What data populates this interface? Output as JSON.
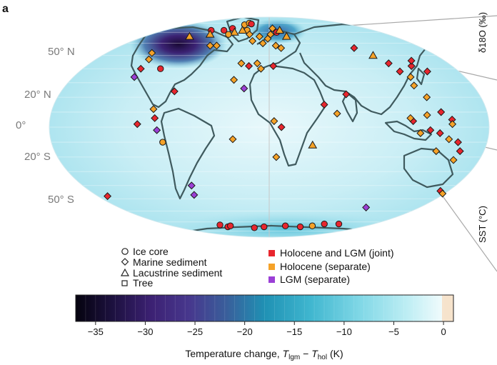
{
  "panel_label": "a",
  "latitude_labels": [
    "50° N",
    "20° N",
    "0°",
    "20° S",
    "50° S"
  ],
  "side_labels": {
    "top": "δ18O (‰)",
    "bottom": "SST (°C)"
  },
  "legend": {
    "markers": [
      {
        "shape": "circle",
        "label": "Ice core"
      },
      {
        "shape": "diamond",
        "label": "Marine sediment"
      },
      {
        "shape": "triangle",
        "label": "Lacustrine sediment"
      },
      {
        "shape": "square",
        "label": "Tree"
      }
    ],
    "categories": [
      {
        "label": "Holocene and LGM (joint)",
        "color": "#e8262e"
      },
      {
        "label": "Holocene (separate)",
        "color": "#f5a228"
      },
      {
        "label": "LGM (separate)",
        "color": "#9b3fd6"
      }
    ]
  },
  "colorbar": {
    "ticks": [
      "−35",
      "−30",
      "−25",
      "−20",
      "−15",
      "−10",
      "−5",
      "0"
    ],
    "tick_values": [
      -35,
      -30,
      -25,
      -20,
      -15,
      -10,
      -5,
      0
    ],
    "range": [
      -37,
      1
    ],
    "title_prefix": "Temperature change, ",
    "title_var1": "T",
    "title_sub1": "lgm",
    "title_mid": " − ",
    "title_var2": "T",
    "title_sub2": "hol",
    "title_suffix": " (K)"
  },
  "sites": [
    {
      "lon": -105,
      "lat": 40,
      "shape": "circle",
      "cat": "joint"
    },
    {
      "lon": -115,
      "lat": 66,
      "shape": "triangle",
      "cat": "holo"
    },
    {
      "lon": -100,
      "lat": 72,
      "shape": "circle",
      "cat": "joint"
    },
    {
      "lon": -90,
      "lat": 68,
      "shape": "triangle",
      "cat": "holo"
    },
    {
      "lon": -78,
      "lat": 72,
      "shape": "circle",
      "cat": "joint"
    },
    {
      "lon": -68,
      "lat": 74,
      "shape": "circle",
      "cat": "joint"
    },
    {
      "lon": -55,
      "lat": 78,
      "shape": "circle",
      "cat": "holo"
    },
    {
      "lon": -50,
      "lat": 80,
      "shape": "circle",
      "cat": "holo"
    },
    {
      "lon": -42,
      "lat": 79,
      "shape": "circle",
      "cat": "joint"
    },
    {
      "lon": -38,
      "lat": 72,
      "shape": "circle",
      "cat": "holo"
    },
    {
      "lon": -46,
      "lat": 72,
      "shape": "triangle",
      "cat": "holo"
    },
    {
      "lon": -56,
      "lat": 70,
      "shape": "triangle",
      "cat": "holo"
    },
    {
      "lon": -62,
      "lat": 68,
      "shape": "circle",
      "cat": "holo"
    },
    {
      "lon": -30,
      "lat": 68,
      "shape": "diamond",
      "cat": "holo"
    },
    {
      "lon": -22,
      "lat": 62,
      "shape": "diamond",
      "cat": "holo"
    },
    {
      "lon": -14,
      "lat": 66,
      "shape": "diamond",
      "cat": "holo"
    },
    {
      "lon": -8,
      "lat": 60,
      "shape": "diamond",
      "cat": "holo"
    },
    {
      "lon": -2,
      "lat": 64,
      "shape": "diamond",
      "cat": "holo"
    },
    {
      "lon": 2,
      "lat": 68,
      "shape": "diamond",
      "cat": "holo"
    },
    {
      "lon": 6,
      "lat": 74,
      "shape": "diamond",
      "cat": "holo"
    },
    {
      "lon": 12,
      "lat": 70,
      "shape": "circle",
      "cat": "joint"
    },
    {
      "lon": 18,
      "lat": 72,
      "shape": "triangle",
      "cat": "holo"
    },
    {
      "lon": 25,
      "lat": 66,
      "shape": "triangle",
      "cat": "holo"
    },
    {
      "lon": 8,
      "lat": 58,
      "shape": "diamond",
      "cat": "holo"
    },
    {
      "lon": 14,
      "lat": 56,
      "shape": "diamond",
      "cat": "holo"
    },
    {
      "lon": -130,
      "lat": 52,
      "shape": "diamond",
      "cat": "holo"
    },
    {
      "lon": -125,
      "lat": 47,
      "shape": "diamond",
      "cat": "holo"
    },
    {
      "lon": -124,
      "lat": 40,
      "shape": "diamond",
      "cat": "joint"
    },
    {
      "lon": -124,
      "lat": 34,
      "shape": "diamond",
      "cat": "purple"
    },
    {
      "lon": -72,
      "lat": 58,
      "shape": "diamond",
      "cat": "holo"
    },
    {
      "lon": -64,
      "lat": 58,
      "shape": "diamond",
      "cat": "holo"
    },
    {
      "lon": -28,
      "lat": 44,
      "shape": "diamond",
      "cat": "holo"
    },
    {
      "lon": -20,
      "lat": 42,
      "shape": "diamond",
      "cat": "joint"
    },
    {
      "lon": -12,
      "lat": 44,
      "shape": "diamond",
      "cat": "holo"
    },
    {
      "lon": -8,
      "lat": 40,
      "shape": "diamond",
      "cat": "holo"
    },
    {
      "lon": 4,
      "lat": 42,
      "shape": "diamond",
      "cat": "joint"
    },
    {
      "lon": -32,
      "lat": 32,
      "shape": "diamond",
      "cat": "holo"
    },
    {
      "lon": -22,
      "lat": 26,
      "shape": "diamond",
      "cat": "purple"
    },
    {
      "lon": 46,
      "lat": 15,
      "shape": "diamond",
      "cat": "joint"
    },
    {
      "lon": 66,
      "lat": 22,
      "shape": "diamond",
      "cat": "joint"
    },
    {
      "lon": 56,
      "lat": 9,
      "shape": "diamond",
      "cat": "holo"
    },
    {
      "lon": 36,
      "lat": -12,
      "shape": "triangle",
      "cat": "holo"
    },
    {
      "lon": 10,
      "lat": 0,
      "shape": "diamond",
      "cat": "joint"
    },
    {
      "lon": 4,
      "lat": 4,
      "shape": "diamond",
      "cat": "holo"
    },
    {
      "lon": 6,
      "lat": -20,
      "shape": "diamond",
      "cat": "holo"
    },
    {
      "lon": -82,
      "lat": 24,
      "shape": "diamond",
      "cat": "joint"
    },
    {
      "lon": -96,
      "lat": 12,
      "shape": "diamond",
      "cat": "holo"
    },
    {
      "lon": -94,
      "lat": 6,
      "shape": "diamond",
      "cat": "red"
    },
    {
      "lon": -108,
      "lat": 2,
      "shape": "diamond",
      "cat": "joint"
    },
    {
      "lon": -92,
      "lat": -2,
      "shape": "diamond",
      "cat": "purple"
    },
    {
      "lon": -88,
      "lat": -10,
      "shape": "circle",
      "cat": "holo"
    },
    {
      "lon": -30,
      "lat": -8,
      "shape": "diamond",
      "cat": "holo"
    },
    {
      "lon": -75,
      "lat": -40,
      "shape": "diamond",
      "cat": "purple"
    },
    {
      "lon": -78,
      "lat": -47,
      "shape": "diamond",
      "cat": "purple"
    },
    {
      "lon": 116,
      "lat": -57,
      "shape": "diamond",
      "cat": "purple"
    },
    {
      "lon": 100,
      "lat": 56,
      "shape": "diamond",
      "cat": "joint"
    },
    {
      "lon": 112,
      "lat": 50,
      "shape": "triangle",
      "cat": "holo"
    },
    {
      "lon": 120,
      "lat": 44,
      "shape": "diamond",
      "cat": "joint"
    },
    {
      "lon": 124,
      "lat": 38,
      "shape": "diamond",
      "cat": "joint"
    },
    {
      "lon": 130,
      "lat": 34,
      "shape": "diamond",
      "cat": "holo"
    },
    {
      "lon": 128,
      "lat": 28,
      "shape": "diamond",
      "cat": "holo"
    },
    {
      "lon": 140,
      "lat": 42,
      "shape": "diamond",
      "cat": "joint"
    },
    {
      "lon": 146,
      "lat": 46,
      "shape": "diamond",
      "cat": "joint"
    },
    {
      "lon": 150,
      "lat": 38,
      "shape": "diamond",
      "cat": "joint"
    },
    {
      "lon": 134,
      "lat": 20,
      "shape": "diamond",
      "cat": "holo"
    },
    {
      "lon": 142,
      "lat": 10,
      "shape": "diamond",
      "cat": "joint"
    },
    {
      "lon": 150,
      "lat": 5,
      "shape": "diamond",
      "cat": "joint"
    },
    {
      "lon": 118,
      "lat": 4,
      "shape": "diamond",
      "cat": "red"
    },
    {
      "lon": 124,
      "lat": -4,
      "shape": "diamond",
      "cat": "holo"
    },
    {
      "lon": 132,
      "lat": -2,
      "shape": "diamond",
      "cat": "joint"
    },
    {
      "lon": 140,
      "lat": -4,
      "shape": "diamond",
      "cat": "joint"
    },
    {
      "lon": 148,
      "lat": -8,
      "shape": "diamond",
      "cat": "holo"
    },
    {
      "lon": 150,
      "lat": 2,
      "shape": "diamond",
      "cat": "holo"
    },
    {
      "lon": 130,
      "lat": 8,
      "shape": "diamond",
      "cat": "holo"
    },
    {
      "lon": 156,
      "lat": -10,
      "shape": "diamond",
      "cat": "red"
    },
    {
      "lon": 160,
      "lat": -16,
      "shape": "diamond",
      "cat": "joint"
    },
    {
      "lon": 158,
      "lat": -22,
      "shape": "diamond",
      "cat": "holo"
    },
    {
      "lon": 140,
      "lat": -16,
      "shape": "diamond",
      "cat": "holo"
    },
    {
      "lon": 116,
      "lat": 6,
      "shape": "diamond",
      "cat": "holo"
    },
    {
      "lon": 172,
      "lat": -44,
      "shape": "diamond",
      "cat": "red"
    },
    {
      "lon": 178,
      "lat": -46,
      "shape": "diamond",
      "cat": "holo"
    },
    {
      "lon": -170,
      "lat": -48,
      "shape": "diamond",
      "cat": "red"
    },
    {
      "lon": -88,
      "lat": -73,
      "shape": "circle",
      "cat": "joint"
    },
    {
      "lon": -80,
      "lat": -75,
      "shape": "circle",
      "cat": "joint"
    },
    {
      "lon": -72,
      "lat": -74,
      "shape": "circle",
      "cat": "joint"
    },
    {
      "lon": -30,
      "lat": -76,
      "shape": "circle",
      "cat": "joint"
    },
    {
      "lon": -10,
      "lat": -75,
      "shape": "circle",
      "cat": "joint"
    },
    {
      "lon": 30,
      "lat": -74,
      "shape": "circle",
      "cat": "joint"
    },
    {
      "lon": 60,
      "lat": -75,
      "shape": "circle",
      "cat": "joint"
    },
    {
      "lon": 80,
      "lat": -74,
      "shape": "circle",
      "cat": "holo"
    },
    {
      "lon": 95,
      "lat": -72,
      "shape": "circle",
      "cat": "joint"
    },
    {
      "lon": 120,
      "lat": -72,
      "shape": "circle",
      "cat": "joint"
    }
  ]
}
